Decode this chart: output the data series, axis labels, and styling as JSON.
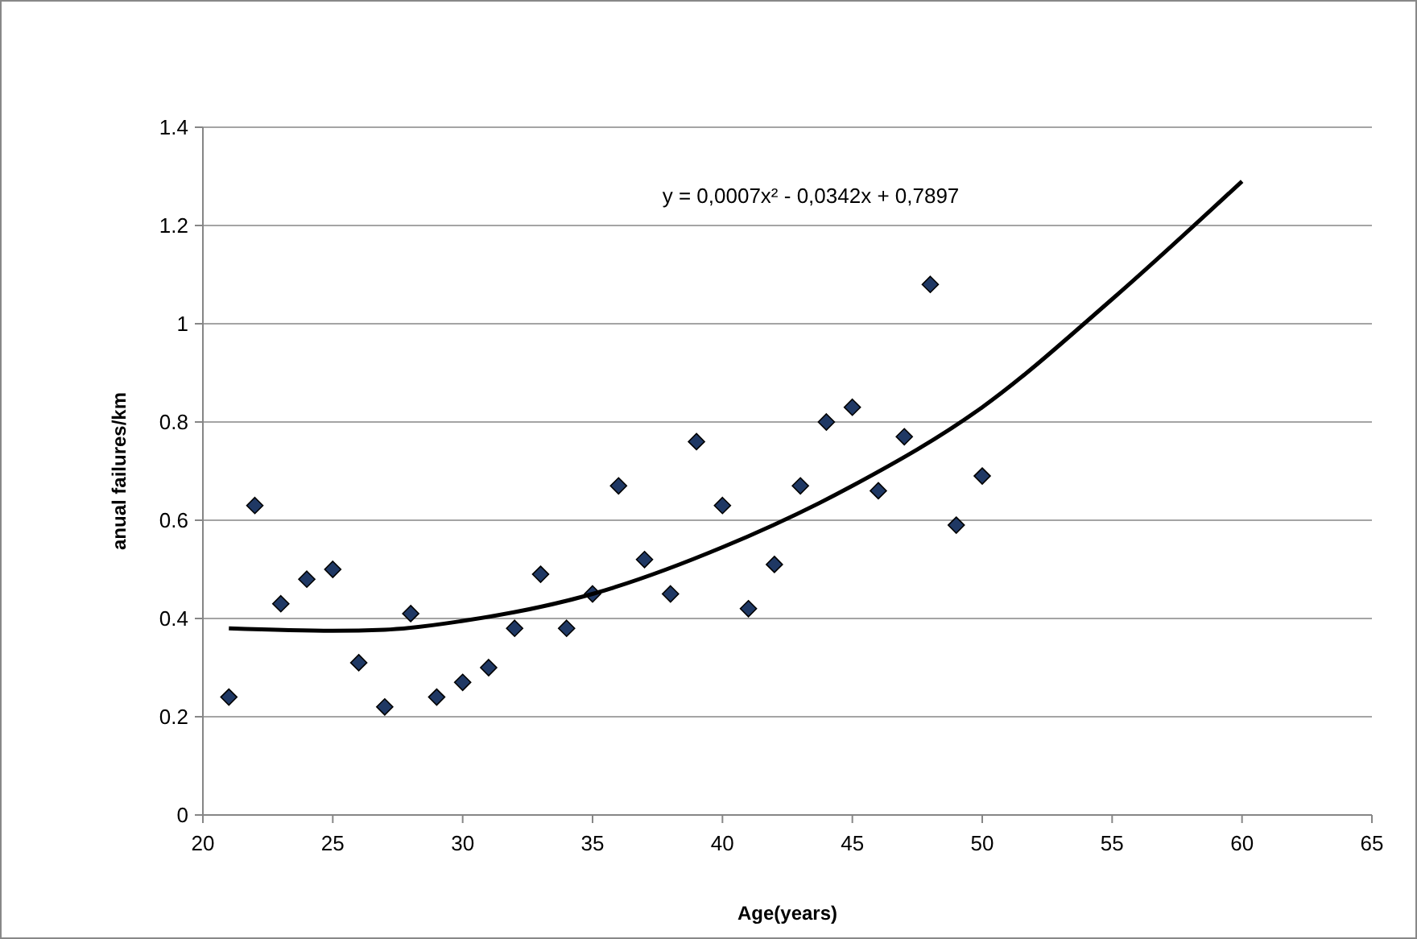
{
  "chart_data": {
    "type": "scatter",
    "xlabel": "Age(years)",
    "ylabel": "anual failures/km",
    "annotations": [
      "y = 0,0007x² - 0,0342x + 0,7897"
    ],
    "xlim": [
      20,
      65
    ],
    "xticks": [
      20,
      25,
      30,
      35,
      40,
      45,
      50,
      55,
      60,
      65
    ],
    "ylim": [
      0,
      1.4
    ],
    "yticks": [
      0,
      0.2,
      0.4,
      0.6,
      0.8,
      1,
      1.2,
      1.4
    ],
    "grid": "y",
    "marker": "diamond",
    "series": [
      {
        "color": "#1f3864",
        "x": [
          21,
          22,
          23,
          24,
          25,
          26,
          27,
          28,
          29,
          30,
          31,
          32,
          33,
          34,
          35,
          36,
          37,
          38,
          39,
          40,
          41,
          42,
          43,
          44,
          45,
          46,
          47,
          48,
          49,
          50
        ],
        "values": [
          0.24,
          0.63,
          0.43,
          0.48,
          0.5,
          0.31,
          0.22,
          0.41,
          0.24,
          0.27,
          0.3,
          0.38,
          0.49,
          0.38,
          0.45,
          0.67,
          0.52,
          0.45,
          0.76,
          0.63,
          0.42,
          0.51,
          0.67,
          0.8,
          0.83,
          0.66,
          0.77,
          1.08,
          0.59,
          0.69
        ]
      },
      {
        "type": "line",
        "color": "#000000",
        "line_style": "solid",
        "marker": "none",
        "x": [
          21,
          25,
          27,
          30,
          35,
          40,
          45,
          50,
          55,
          60
        ],
        "values": [
          0.38,
          0.375,
          0.377,
          0.395,
          0.45,
          0.545,
          0.67,
          0.83,
          1.05,
          1.29
        ]
      }
    ]
  }
}
